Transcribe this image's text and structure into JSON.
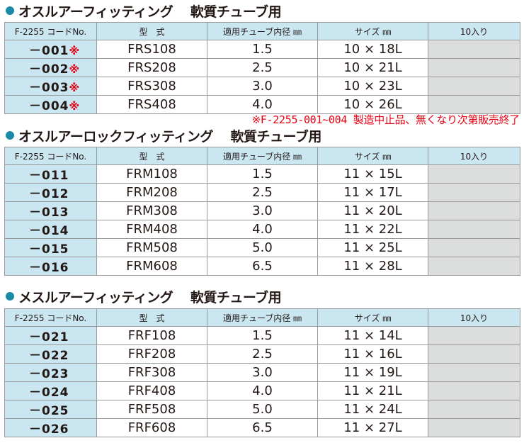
{
  "columns": [
    "F-2255 コードNo.",
    "型　式",
    "適用チューブ内径 ㎜",
    "サイズ ㎜",
    "10入り"
  ],
  "sections": [
    {
      "title": "オスルアーフィッティング　 軟質チューブ用",
      "rows": [
        {
          "code": "－001",
          "mark": "※",
          "model": "FRS108",
          "inner": "1.5",
          "size": "10 × 18L"
        },
        {
          "code": "－002",
          "mark": "※",
          "model": "FRS208",
          "inner": "2.5",
          "size": "10 × 21L"
        },
        {
          "code": "－003",
          "mark": "※",
          "model": "FRS308",
          "inner": "3.0",
          "size": "10 × 23L"
        },
        {
          "code": "－004",
          "mark": "※",
          "model": "FRS408",
          "inner": "4.0",
          "size": "10 × 26L"
        }
      ]
    },
    {
      "title": "オスルアーロックフィッティング　 軟質チューブ用",
      "rows": [
        {
          "code": "－011",
          "mark": "",
          "model": "FRM108",
          "inner": "1.5",
          "size": "11 × 15L"
        },
        {
          "code": "－012",
          "mark": "",
          "model": "FRM208",
          "inner": "2.5",
          "size": "11 × 17L"
        },
        {
          "code": "－013",
          "mark": "",
          "model": "FRM308",
          "inner": "3.0",
          "size": "11 × 20L"
        },
        {
          "code": "－014",
          "mark": "",
          "model": "FRM408",
          "inner": "4.0",
          "size": "11 × 22L"
        },
        {
          "code": "－015",
          "mark": "",
          "model": "FRM508",
          "inner": "5.0",
          "size": "11 × 25L"
        },
        {
          "code": "－016",
          "mark": "",
          "model": "FRM608",
          "inner": "6.5",
          "size": "11 × 28L"
        }
      ]
    },
    {
      "title": "メスルアーフィッティング　 軟質チューブ用",
      "rows": [
        {
          "code": "－021",
          "mark": "",
          "model": "FRF108",
          "inner": "1.5",
          "size": "11 × 14L"
        },
        {
          "code": "－022",
          "mark": "",
          "model": "FRF208",
          "inner": "2.5",
          "size": "11 × 16L"
        },
        {
          "code": "－023",
          "mark": "",
          "model": "FRF308",
          "inner": "3.0",
          "size": "11 × 19L"
        },
        {
          "code": "－024",
          "mark": "",
          "model": "FRF408",
          "inner": "4.0",
          "size": "11 × 21L"
        },
        {
          "code": "－025",
          "mark": "",
          "model": "FRF508",
          "inner": "5.0",
          "size": "11 × 24L"
        },
        {
          "code": "－026",
          "mark": "",
          "model": "FRF608",
          "inner": "6.5",
          "size": "11 × 27L"
        }
      ]
    }
  ],
  "note": "※F-2255-001~004 製造中止品、無くなり次第販売終了",
  "colors": {
    "accent": "#1a8aa6",
    "header_bg": "#c9e6f1",
    "qty_bg": "#dcdddd",
    "note": "#e60012"
  }
}
